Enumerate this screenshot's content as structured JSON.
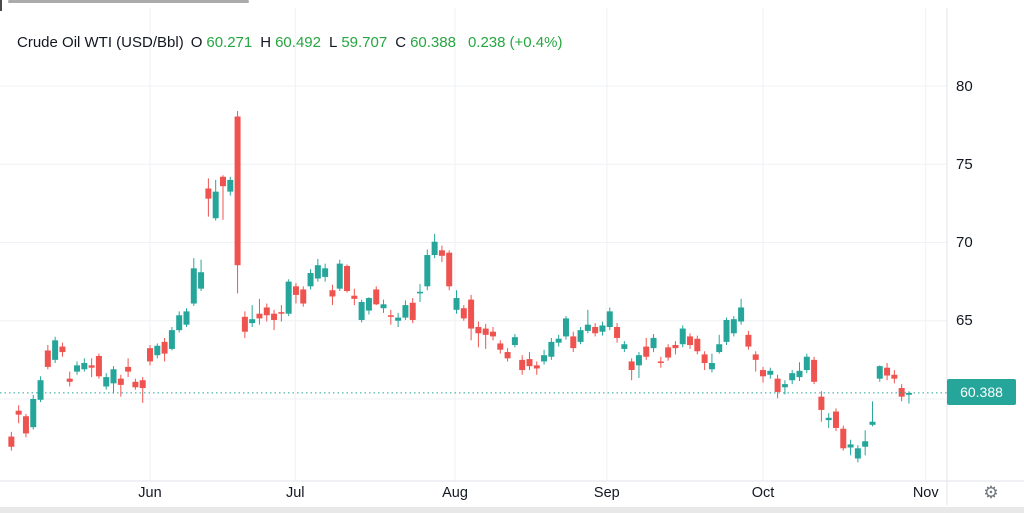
{
  "header": {
    "title": "Crude Oil WTI (USD/Bbl)",
    "open_label": "O",
    "open": "60.271",
    "high_label": "H",
    "high": "60.492",
    "low_label": "L",
    "low": "59.707",
    "close_label": "C",
    "close": "60.388",
    "change": "0.238",
    "change_percent": "(+0.4%)"
  },
  "price_axis": {
    "current_price_badge": "60.388"
  },
  "settings": {
    "gear_glyph": "⚙"
  },
  "colors": {
    "up": "#26a69a",
    "down": "#ef5350",
    "header_value_green": "#26a641",
    "badge_bg": "#26a69a",
    "price_line": "#26a69a",
    "grid": "#eef1f5",
    "axis_line": "#e0e3eb",
    "text_dark": "#131722"
  },
  "chart_data": {
    "type": "candlestick",
    "title": "Crude Oil WTI (USD/Bbl)",
    "last": {
      "open": 60.271,
      "high": 60.492,
      "low": 59.707,
      "close": 60.388,
      "change": 0.238,
      "change_percent": "+0.4%"
    },
    "y_axis": {
      "tick_prices": [
        80,
        75,
        70,
        65
      ],
      "grid_prices": [
        80,
        75,
        70,
        65,
        60
      ],
      "price_line": 60.388,
      "range_approx": [
        55.5,
        81
      ]
    },
    "x_axis": {
      "month_ticks": [
        {
          "label": "Jun",
          "index": 19.0
        },
        {
          "label": "Jul",
          "index": 38.9
        },
        {
          "label": "Aug",
          "index": 60.8
        },
        {
          "label": "Sep",
          "index": 81.6
        },
        {
          "label": "Oct",
          "index": 103.0
        },
        {
          "label": "Nov",
          "index": 125.3
        }
      ]
    },
    "candles": [
      [
        57.6,
        57.9,
        56.7,
        56.95
      ],
      [
        59.25,
        59.6,
        58.45,
        59.0
      ],
      [
        58.9,
        59.05,
        57.55,
        57.8
      ],
      [
        58.2,
        60.25,
        58.05,
        60.0
      ],
      [
        59.95,
        61.45,
        59.8,
        61.2
      ],
      [
        63.1,
        63.45,
        61.9,
        62.05
      ],
      [
        62.5,
        63.98,
        62.3,
        63.75
      ],
      [
        63.35,
        63.6,
        62.7,
        63.0
      ],
      [
        61.3,
        61.75,
        60.8,
        61.1
      ],
      [
        61.75,
        62.4,
        61.55,
        62.15
      ],
      [
        61.9,
        62.6,
        61.75,
        62.3
      ],
      [
        62.15,
        62.6,
        61.4,
        62.0
      ],
      [
        62.75,
        62.9,
        61.3,
        61.45
      ],
      [
        60.8,
        61.65,
        60.6,
        61.4
      ],
      [
        61.0,
        62.1,
        60.35,
        61.9
      ],
      [
        61.3,
        61.55,
        60.15,
        60.9
      ],
      [
        62.05,
        62.6,
        61.4,
        61.75
      ],
      [
        61.1,
        61.3,
        60.6,
        60.75
      ],
      [
        61.2,
        61.4,
        59.75,
        60.7
      ],
      [
        63.25,
        63.45,
        62.15,
        62.4
      ],
      [
        62.8,
        63.55,
        62.6,
        63.4
      ],
      [
        63.65,
        63.9,
        62.4,
        62.9
      ],
      [
        63.2,
        64.6,
        63.1,
        64.4
      ],
      [
        64.4,
        65.6,
        64.25,
        65.35
      ],
      [
        64.75,
        65.8,
        64.6,
        65.6
      ],
      [
        66.1,
        69.0,
        65.95,
        68.35
      ],
      [
        67.05,
        68.9,
        66.9,
        68.1
      ],
      [
        73.45,
        74.1,
        71.65,
        72.8
      ],
      [
        71.55,
        74.0,
        71.4,
        73.25
      ],
      [
        74.2,
        74.3,
        71.45,
        73.6
      ],
      [
        73.25,
        74.2,
        73.0,
        74.0
      ],
      [
        78.05,
        78.4,
        66.75,
        68.55
      ],
      [
        65.25,
        65.6,
        63.9,
        64.3
      ],
      [
        64.85,
        66.0,
        64.6,
        65.1
      ],
      [
        65.45,
        66.4,
        64.75,
        65.15
      ],
      [
        65.85,
        66.1,
        64.95,
        65.35
      ],
      [
        65.45,
        65.7,
        64.4,
        65.05
      ],
      [
        65.55,
        66.0,
        64.95,
        65.45
      ],
      [
        65.45,
        67.65,
        65.3,
        67.5
      ],
      [
        67.2,
        67.4,
        66.1,
        66.65
      ],
      [
        67.0,
        67.2,
        65.9,
        66.1
      ],
      [
        67.2,
        68.3,
        67.0,
        68.05
      ],
      [
        67.7,
        68.95,
        67.5,
        68.55
      ],
      [
        67.8,
        68.65,
        67.5,
        68.35
      ],
      [
        66.95,
        67.3,
        66.0,
        66.55
      ],
      [
        67.05,
        68.9,
        66.9,
        68.65
      ],
      [
        68.5,
        68.6,
        66.8,
        66.9
      ],
      [
        66.6,
        67.05,
        66.0,
        66.4
      ],
      [
        65.05,
        66.35,
        64.9,
        66.2
      ],
      [
        65.65,
        66.5,
        65.4,
        66.45
      ],
      [
        67.0,
        67.2,
        66.0,
        66.05
      ],
      [
        65.8,
        66.35,
        65.5,
        66.05
      ],
      [
        65.35,
        65.7,
        64.75,
        65.25
      ],
      [
        65.0,
        65.5,
        64.6,
        65.2
      ],
      [
        65.2,
        66.3,
        65.05,
        66.0
      ],
      [
        66.15,
        66.45,
        64.85,
        65.05
      ],
      [
        66.75,
        67.35,
        66.2,
        66.85
      ],
      [
        67.2,
        69.55,
        66.95,
        69.2
      ],
      [
        69.2,
        70.55,
        69.0,
        70.05
      ],
      [
        69.5,
        69.8,
        68.75,
        69.15
      ],
      [
        69.35,
        69.5,
        66.95,
        67.2
      ],
      [
        65.7,
        66.95,
        65.45,
        66.45
      ],
      [
        65.8,
        66.0,
        65.0,
        65.15
      ],
      [
        66.35,
        66.65,
        63.75,
        64.5
      ],
      [
        64.6,
        64.95,
        63.3,
        64.2
      ],
      [
        64.5,
        64.8,
        63.2,
        64.1
      ],
      [
        64.3,
        64.6,
        63.75,
        64.0
      ],
      [
        63.55,
        63.75,
        62.9,
        63.15
      ],
      [
        63.0,
        63.25,
        62.4,
        62.6
      ],
      [
        63.45,
        64.15,
        63.3,
        63.95
      ],
      [
        62.5,
        62.8,
        61.55,
        61.85
      ],
      [
        62.55,
        63.0,
        61.85,
        62.1
      ],
      [
        62.15,
        62.4,
        61.55,
        61.95
      ],
      [
        62.4,
        63.15,
        62.2,
        62.8
      ],
      [
        62.7,
        63.9,
        62.5,
        63.65
      ],
      [
        63.6,
        64.1,
        63.35,
        63.85
      ],
      [
        64.0,
        65.3,
        63.8,
        65.15
      ],
      [
        64.0,
        64.3,
        63.0,
        63.25
      ],
      [
        63.65,
        64.6,
        63.5,
        64.4
      ],
      [
        64.35,
        65.7,
        64.2,
        64.75
      ],
      [
        64.6,
        64.85,
        64.0,
        64.2
      ],
      [
        64.3,
        64.95,
        64.05,
        64.7
      ],
      [
        64.6,
        65.85,
        64.4,
        65.6
      ],
      [
        64.6,
        64.85,
        63.6,
        63.9
      ],
      [
        63.2,
        63.7,
        63.0,
        63.5
      ],
      [
        62.4,
        62.6,
        61.2,
        61.85
      ],
      [
        62.15,
        63.0,
        61.35,
        62.8
      ],
      [
        63.35,
        63.9,
        62.5,
        62.7
      ],
      [
        63.25,
        64.15,
        63.0,
        63.9
      ],
      [
        62.4,
        62.7,
        62.0,
        62.3
      ],
      [
        63.3,
        63.5,
        62.45,
        62.65
      ],
      [
        63.45,
        63.7,
        62.85,
        63.25
      ],
      [
        63.5,
        64.7,
        63.3,
        64.5
      ],
      [
        64.0,
        64.2,
        63.2,
        63.45
      ],
      [
        63.85,
        64.05,
        62.85,
        63.05
      ],
      [
        62.85,
        63.05,
        61.85,
        62.3
      ],
      [
        61.9,
        62.9,
        61.7,
        62.3
      ],
      [
        63.0,
        64.1,
        62.9,
        63.5
      ],
      [
        63.65,
        65.2,
        63.45,
        65.05
      ],
      [
        64.2,
        65.3,
        64.0,
        65.1
      ],
      [
        64.95,
        66.4,
        64.75,
        65.85
      ],
      [
        64.1,
        64.35,
        63.15,
        63.35
      ],
      [
        62.85,
        63.05,
        61.75,
        62.5
      ],
      [
        61.85,
        62.05,
        61.05,
        61.45
      ],
      [
        61.55,
        62.0,
        61.3,
        61.8
      ],
      [
        61.3,
        61.55,
        60.05,
        60.45
      ],
      [
        60.75,
        61.2,
        60.3,
        60.95
      ],
      [
        61.2,
        61.85,
        60.95,
        61.65
      ],
      [
        61.4,
        62.35,
        61.15,
        61.8
      ],
      [
        61.85,
        62.9,
        61.65,
        62.7
      ],
      [
        62.5,
        62.7,
        60.95,
        61.1
      ],
      [
        60.15,
        60.5,
        58.55,
        59.3
      ],
      [
        58.65,
        59.1,
        58.15,
        58.8
      ],
      [
        59.2,
        59.4,
        57.95,
        58.15
      ],
      [
        58.1,
        58.3,
        56.7,
        56.85
      ],
      [
        56.9,
        57.4,
        56.4,
        57.1
      ],
      [
        56.2,
        57.05,
        55.95,
        56.85
      ],
      [
        56.95,
        58.0,
        56.4,
        57.3
      ],
      [
        58.35,
        59.85,
        58.25,
        58.55
      ],
      [
        61.3,
        62.15,
        61.1,
        62.1
      ],
      [
        62.0,
        62.3,
        61.2,
        61.5
      ],
      [
        61.55,
        61.85,
        61.0,
        61.3
      ],
      [
        60.7,
        60.95,
        59.85,
        60.15
      ],
      [
        60.271,
        60.492,
        59.707,
        60.388
      ]
    ]
  }
}
